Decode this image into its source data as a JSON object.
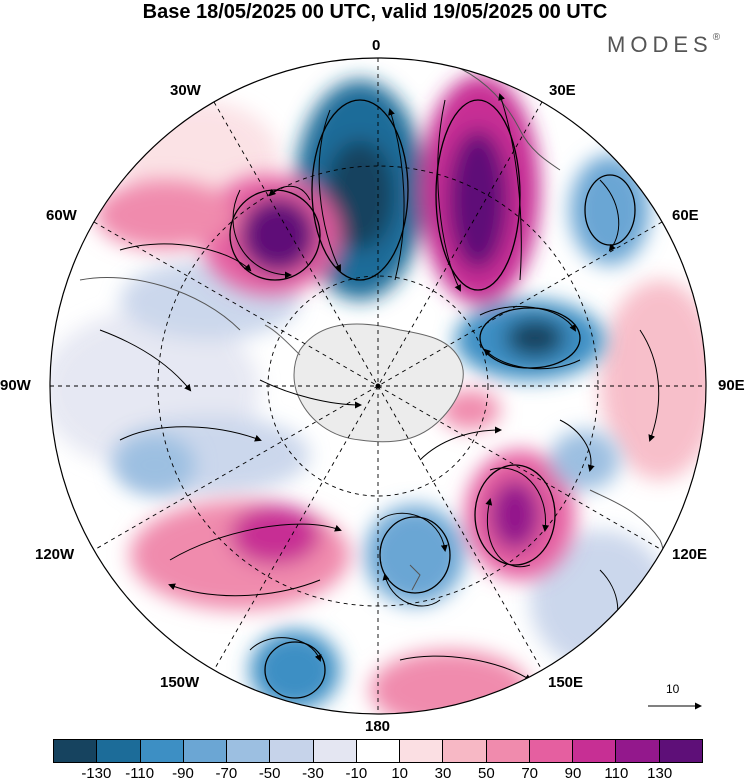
{
  "title": "Base 18/05/2025 00 UTC, valid 19/05/2025 00 UTC",
  "brand": "MODES",
  "brand_mark": "®",
  "longitude_labels": {
    "n": "0",
    "ne": "30E",
    "ene": "60E",
    "e": "90E",
    "ese": "120E",
    "se": "150E",
    "s": "180",
    "sw": "150W",
    "wsw": "120W",
    "w": "90W",
    "wnw": "60W",
    "nw": "30W"
  },
  "reference_vector_label": "10",
  "colorbar": {
    "colors": [
      "#16435f",
      "#1c6c99",
      "#3d8fc4",
      "#6ba6d4",
      "#9cbfe1",
      "#c6d3ea",
      "#e4e6f2",
      "#ffffff",
      "#fbdfe3",
      "#f7b8c5",
      "#f08bad",
      "#e55fa0",
      "#c72f94",
      "#93188c",
      "#5e0f78"
    ],
    "tick_labels": [
      "-130",
      "-110",
      "-90",
      "-70",
      "-50",
      "-30",
      "-10",
      "10",
      "30",
      "50",
      "70",
      "90",
      "110",
      "130"
    ]
  },
  "map": {
    "projection": "south-polar-stereographic",
    "fill_colors": {
      "ocean": "#ffffff",
      "land": "#ececec"
    },
    "anomaly_centers": [
      {
        "name": "low-0",
        "level": -110
      },
      {
        "name": "high-30e",
        "level": 130
      },
      {
        "name": "high-40w",
        "level": 130
      },
      {
        "name": "low-60e",
        "level": -70
      },
      {
        "name": "low-80e",
        "level": -110
      },
      {
        "name": "high-110e",
        "level": 110
      },
      {
        "name": "high-130w",
        "level": 90
      },
      {
        "name": "low-160w",
        "level": -90
      },
      {
        "name": "low-170e",
        "level": -70
      },
      {
        "name": "high-170e",
        "level": 70
      }
    ]
  }
}
